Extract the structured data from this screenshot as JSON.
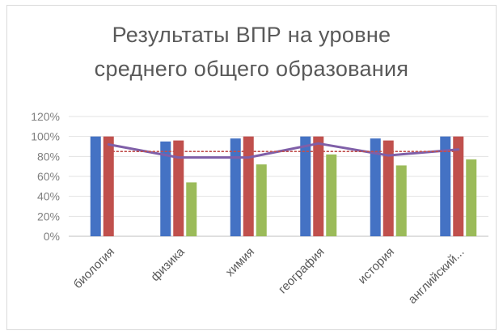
{
  "chart_data": {
    "type": "bar",
    "title_lines": [
      "Результаты ВПР на уровне",
      "среднего общего образования"
    ],
    "categories": [
      "биология",
      "физика",
      "химия",
      "география",
      "история",
      "английский..."
    ],
    "y_ticks": [
      "0%",
      "20%",
      "40%",
      "60%",
      "80%",
      "100%",
      "120%"
    ],
    "ylim": [
      0,
      120
    ],
    "grid": true,
    "series": [
      {
        "values": [
          100,
          95,
          98,
          100,
          98,
          100
        ],
        "color": "#4472c4"
      },
      {
        "values": [
          100,
          96,
          100,
          100,
          96,
          100
        ],
        "color": "#c0504d"
      },
      {
        "values": [
          0,
          54,
          72,
          82,
          71,
          77
        ],
        "color": "#9bbb59"
      }
    ],
    "line_series": [
      {
        "values": [
          92,
          79,
          79,
          93,
          81,
          87
        ],
        "color": "#7f5fa8",
        "style": "solid"
      },
      {
        "values": [
          85,
          85,
          85,
          85,
          85,
          85
        ],
        "color": "#c0504d",
        "style": "dotted"
      }
    ]
  }
}
